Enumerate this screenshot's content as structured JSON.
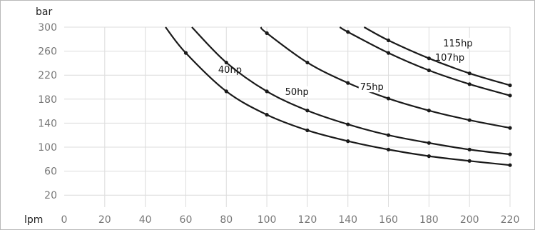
{
  "chart_data": {
    "type": "line",
    "xlabel": "lpm",
    "ylabel": "bar",
    "xlim": [
      0,
      220
    ],
    "ylim": [
      0,
      300
    ],
    "x_ticks": [
      0,
      20,
      40,
      60,
      80,
      100,
      120,
      140,
      160,
      180,
      200,
      220
    ],
    "y_ticks": [
      20,
      60,
      100,
      140,
      180,
      220,
      260,
      300
    ],
    "grid": true,
    "series": [
      {
        "name": "40hp",
        "x": [
          50,
          60,
          80,
          100,
          120,
          140,
          160,
          180,
          200,
          220
        ],
        "values": [
          300,
          257,
          193,
          154,
          128,
          110,
          96,
          85,
          77,
          70
        ],
        "markers": [
          60,
          80,
          100,
          120,
          140,
          160,
          180,
          200,
          220
        ],
        "label_at": [
          76,
          224
        ]
      },
      {
        "name": "50hp",
        "x": [
          63,
          80,
          100,
          120,
          140,
          160,
          180,
          200,
          220
        ],
        "values": [
          300,
          241,
          193,
          161,
          138,
          120,
          107,
          96,
          88
        ],
        "markers": [
          80,
          100,
          120,
          140,
          160,
          180,
          200,
          220
        ],
        "label_at": [
          109,
          187
        ]
      },
      {
        "name": "75hp",
        "x": [
          97,
          100,
          120,
          140,
          160,
          180,
          200,
          220
        ],
        "values": [
          300,
          290,
          241,
          207,
          181,
          161,
          145,
          132
        ],
        "markers": [
          100,
          120,
          140,
          160,
          180,
          200,
          220
        ],
        "label_at": [
          146,
          195
        ]
      },
      {
        "name": "107hp",
        "x": [
          136,
          140,
          160,
          180,
          200,
          220
        ],
        "values": [
          300,
          292,
          257,
          228,
          205,
          186
        ],
        "markers": [
          140,
          160,
          180,
          200,
          220
        ],
        "label_at": [
          183,
          244
        ]
      },
      {
        "name": "115hp",
        "x": [
          148,
          160,
          180,
          200,
          220
        ],
        "values": [
          300,
          278,
          248,
          223,
          203
        ],
        "markers": [
          160,
          180,
          200,
          220
        ],
        "label_at": [
          187,
          268
        ]
      }
    ]
  }
}
